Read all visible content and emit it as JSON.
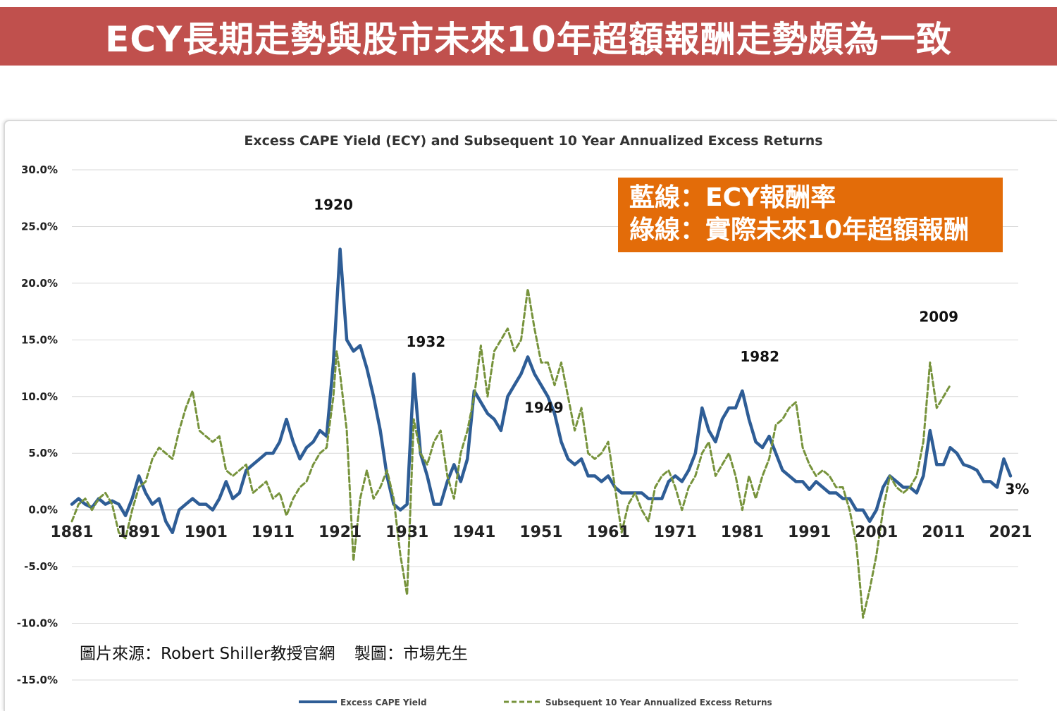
{
  "banner": {
    "text": "ECY長期走勢與股市未來10年超額報酬走勢頗為一致"
  },
  "callout": {
    "line1": "藍線：ECY報酬率",
    "line2": "綠線：實際未來10年超額報酬"
  },
  "source": {
    "photo": "圖片來源：Robert Shiller教授官網",
    "maker": "製圖：市場先生"
  },
  "colors": {
    "banner": "#c0504d",
    "callout": "#e36c09",
    "ecy": "#2e5d96",
    "returns": "#77933c",
    "grid": "#d9d9d9"
  },
  "chart_data": {
    "type": "line",
    "title": "Excess CAPE Yield (ECY) and Subsequent 10 Year Annualized Excess Returns",
    "xlabel": "",
    "ylabel": "",
    "xlim": [
      1881,
      2021
    ],
    "ylim": [
      -15,
      30
    ],
    "x_ticks": [
      "1881",
      "1891",
      "1901",
      "1911",
      "1921",
      "1931",
      "1941",
      "1951",
      "1961",
      "1971",
      "1981",
      "1991",
      "2001",
      "2011",
      "2021"
    ],
    "y_ticks": [
      "30.0%",
      "25.0%",
      "20.0%",
      "15.0%",
      "10.0%",
      "5.0%",
      "0.0%",
      "-5.0%",
      "-10.0%",
      "-15.0%"
    ],
    "grid": true,
    "legend_position": "bottom",
    "annotations": [
      {
        "text": "1920",
        "x": 1920,
        "y": 26.5
      },
      {
        "text": "1932",
        "x": 1933.8,
        "y": 14.4
      },
      {
        "text": "1949",
        "x": 1951.4,
        "y": 8.6
      },
      {
        "text": "1982",
        "x": 1983.6,
        "y": 13.1
      },
      {
        "text": "2009",
        "x": 2010.3,
        "y": 16.6
      },
      {
        "text": "3%",
        "x": 2022,
        "y": 1.4
      }
    ],
    "series": [
      {
        "name": "Excess CAPE Yield",
        "style": "solid",
        "points": [
          [
            1881,
            0.5
          ],
          [
            1882,
            1
          ],
          [
            1883,
            0.5
          ],
          [
            1884,
            0.2
          ],
          [
            1885,
            1
          ],
          [
            1886,
            0.5
          ],
          [
            1887,
            0.8
          ],
          [
            1888,
            0.5
          ],
          [
            1889,
            -0.5
          ],
          [
            1890,
            1
          ],
          [
            1891,
            3
          ],
          [
            1892,
            1.5
          ],
          [
            1893,
            0.5
          ],
          [
            1894,
            1
          ],
          [
            1895,
            -1
          ],
          [
            1896,
            -2
          ],
          [
            1897,
            0
          ],
          [
            1898,
            0.5
          ],
          [
            1899,
            1
          ],
          [
            1900,
            0.5
          ],
          [
            1901,
            0.5
          ],
          [
            1902,
            0
          ],
          [
            1903,
            1
          ],
          [
            1904,
            2.5
          ],
          [
            1905,
            1
          ],
          [
            1906,
            1.5
          ],
          [
            1907,
            3.5
          ],
          [
            1908,
            4
          ],
          [
            1909,
            4.5
          ],
          [
            1910,
            5
          ],
          [
            1911,
            5
          ],
          [
            1912,
            6
          ],
          [
            1913,
            8
          ],
          [
            1914,
            6
          ],
          [
            1915,
            4.5
          ],
          [
            1916,
            5.5
          ],
          [
            1917,
            6
          ],
          [
            1918,
            7
          ],
          [
            1919,
            6.5
          ],
          [
            1920,
            13
          ],
          [
            1920.5,
            18
          ],
          [
            1921,
            23
          ],
          [
            1922,
            15
          ],
          [
            1923,
            14
          ],
          [
            1924,
            14.5
          ],
          [
            1925,
            12.5
          ],
          [
            1926,
            10
          ],
          [
            1927,
            7
          ],
          [
            1928,
            3
          ],
          [
            1929,
            0.5
          ],
          [
            1930,
            0
          ],
          [
            1931,
            0.5
          ],
          [
            1932,
            12
          ],
          [
            1933,
            5
          ],
          [
            1934,
            3
          ],
          [
            1935,
            0.5
          ],
          [
            1936,
            0.5
          ],
          [
            1937,
            2.5
          ],
          [
            1938,
            4
          ],
          [
            1939,
            2.5
          ],
          [
            1940,
            4.5
          ],
          [
            1941,
            10.5
          ],
          [
            1942,
            9.5
          ],
          [
            1943,
            8.5
          ],
          [
            1944,
            8
          ],
          [
            1945,
            7
          ],
          [
            1946,
            10
          ],
          [
            1947,
            11
          ],
          [
            1948,
            12
          ],
          [
            1949,
            13.5
          ],
          [
            1950,
            12
          ],
          [
            1951,
            11
          ],
          [
            1952,
            10
          ],
          [
            1953,
            8.5
          ],
          [
            1954,
            6
          ],
          [
            1955,
            4.5
          ],
          [
            1956,
            4
          ],
          [
            1957,
            4.5
          ],
          [
            1958,
            3
          ],
          [
            1959,
            3
          ],
          [
            1960,
            2.5
          ],
          [
            1961,
            3
          ],
          [
            1962,
            2
          ],
          [
            1963,
            1.5
          ],
          [
            1964,
            1.5
          ],
          [
            1965,
            1.5
          ],
          [
            1966,
            1.5
          ],
          [
            1967,
            1
          ],
          [
            1968,
            1
          ],
          [
            1969,
            1
          ],
          [
            1970,
            2.5
          ],
          [
            1971,
            3
          ],
          [
            1972,
            2.5
          ],
          [
            1973,
            3.5
          ],
          [
            1974,
            5
          ],
          [
            1975,
            9
          ],
          [
            1976,
            7
          ],
          [
            1977,
            6
          ],
          [
            1978,
            8
          ],
          [
            1979,
            9
          ],
          [
            1980,
            9
          ],
          [
            1981,
            10.5
          ],
          [
            1982,
            8
          ],
          [
            1983,
            6
          ],
          [
            1984,
            5.5
          ],
          [
            1985,
            6.5
          ],
          [
            1986,
            5
          ],
          [
            1987,
            3.5
          ],
          [
            1988,
            3
          ],
          [
            1989,
            2.5
          ],
          [
            1990,
            2.5
          ],
          [
            1991,
            1.8
          ],
          [
            1992,
            2.5
          ],
          [
            1993,
            2
          ],
          [
            1994,
            1.5
          ],
          [
            1995,
            1.5
          ],
          [
            1996,
            1
          ],
          [
            1997,
            1
          ],
          [
            1998,
            0
          ],
          [
            1999,
            0
          ],
          [
            2000,
            -1
          ],
          [
            2001,
            0
          ],
          [
            2002,
            2
          ],
          [
            2003,
            3
          ],
          [
            2004,
            2.5
          ],
          [
            2005,
            2
          ],
          [
            2006,
            2
          ],
          [
            2007,
            1.5
          ],
          [
            2008,
            3
          ],
          [
            2009,
            7
          ],
          [
            2010,
            4
          ],
          [
            2011,
            4
          ],
          [
            2012,
            5.5
          ],
          [
            2013,
            5
          ],
          [
            2014,
            4
          ],
          [
            2015,
            3.8
          ],
          [
            2016,
            3.5
          ],
          [
            2017,
            2.5
          ],
          [
            2018,
            2.5
          ],
          [
            2019,
            2
          ],
          [
            2020,
            4.5
          ],
          [
            2021,
            3
          ]
        ]
      },
      {
        "name": "Subsequent 10 Year Annualized Excess Returns",
        "style": "dashed",
        "points": [
          [
            1881,
            -1
          ],
          [
            1882,
            0.5
          ],
          [
            1883,
            1
          ],
          [
            1884,
            0
          ],
          [
            1885,
            1
          ],
          [
            1886,
            1.5
          ],
          [
            1887,
            0.5
          ],
          [
            1888,
            -2
          ],
          [
            1889,
            -2.5
          ],
          [
            1890,
            0
          ],
          [
            1891,
            2
          ],
          [
            1892,
            2.5
          ],
          [
            1893,
            4.5
          ],
          [
            1894,
            5.5
          ],
          [
            1895,
            5
          ],
          [
            1896,
            4.5
          ],
          [
            1897,
            7
          ],
          [
            1898,
            9
          ],
          [
            1899,
            10.5
          ],
          [
            1900,
            7
          ],
          [
            1901,
            6.5
          ],
          [
            1902,
            6
          ],
          [
            1903,
            6.5
          ],
          [
            1904,
            3.5
          ],
          [
            1905,
            3
          ],
          [
            1906,
            3.5
          ],
          [
            1907,
            4
          ],
          [
            1908,
            1.5
          ],
          [
            1909,
            2
          ],
          [
            1910,
            2.5
          ],
          [
            1911,
            1
          ],
          [
            1912,
            1.5
          ],
          [
            1913,
            -0.5
          ],
          [
            1914,
            1
          ],
          [
            1915,
            2
          ],
          [
            1916,
            2.5
          ],
          [
            1917,
            4
          ],
          [
            1918,
            5
          ],
          [
            1919,
            5.5
          ],
          [
            1920,
            10
          ],
          [
            1920.5,
            14
          ],
          [
            1921,
            12
          ],
          [
            1922,
            7
          ],
          [
            1923,
            -4.5
          ],
          [
            1924,
            1
          ],
          [
            1925,
            3.5
          ],
          [
            1926,
            1
          ],
          [
            1927,
            2
          ],
          [
            1928,
            3.5
          ],
          [
            1929,
            1
          ],
          [
            1930,
            -4
          ],
          [
            1931,
            -7.5
          ],
          [
            1932,
            8
          ],
          [
            1933,
            5
          ],
          [
            1934,
            4
          ],
          [
            1935,
            6
          ],
          [
            1936,
            7
          ],
          [
            1937,
            3
          ],
          [
            1938,
            1
          ],
          [
            1939,
            5
          ],
          [
            1940,
            7
          ],
          [
            1941,
            10
          ],
          [
            1942,
            14.5
          ],
          [
            1943,
            10
          ],
          [
            1944,
            14
          ],
          [
            1945,
            15
          ],
          [
            1946,
            16
          ],
          [
            1947,
            14
          ],
          [
            1948,
            15
          ],
          [
            1949,
            19.5
          ],
          [
            1950,
            16
          ],
          [
            1951,
            13
          ],
          [
            1952,
            13
          ],
          [
            1953,
            11
          ],
          [
            1954,
            13
          ],
          [
            1955,
            10
          ],
          [
            1956,
            7
          ],
          [
            1957,
            9
          ],
          [
            1958,
            5
          ],
          [
            1959,
            4.5
          ],
          [
            1960,
            5
          ],
          [
            1961,
            6
          ],
          [
            1962,
            2
          ],
          [
            1963,
            -2
          ],
          [
            1964,
            0.5
          ],
          [
            1965,
            1.5
          ],
          [
            1966,
            0
          ],
          [
            1967,
            -1
          ],
          [
            1968,
            2
          ],
          [
            1969,
            3
          ],
          [
            1970,
            3.5
          ],
          [
            1971,
            2
          ],
          [
            1972,
            0
          ],
          [
            1973,
            2
          ],
          [
            1974,
            3
          ],
          [
            1975,
            5
          ],
          [
            1976,
            6
          ],
          [
            1977,
            3
          ],
          [
            1978,
            4
          ],
          [
            1979,
            5
          ],
          [
            1980,
            3
          ],
          [
            1981,
            0
          ],
          [
            1982,
            3
          ],
          [
            1983,
            1
          ],
          [
            1984,
            3
          ],
          [
            1985,
            4.5
          ],
          [
            1986,
            7.5
          ],
          [
            1987,
            8
          ],
          [
            1988,
            9
          ],
          [
            1989,
            9.5
          ],
          [
            1990,
            5.5
          ],
          [
            1991,
            4
          ],
          [
            1992,
            3
          ],
          [
            1993,
            3.5
          ],
          [
            1994,
            3
          ],
          [
            1995,
            2
          ],
          [
            1996,
            2
          ],
          [
            1997,
            0
          ],
          [
            1998,
            -3
          ],
          [
            1999,
            -9.5
          ],
          [
            2000,
            -7
          ],
          [
            2001,
            -4
          ],
          [
            2002,
            0
          ],
          [
            2003,
            3
          ],
          [
            2004,
            2
          ],
          [
            2005,
            1.5
          ],
          [
            2006,
            2
          ],
          [
            2007,
            3
          ],
          [
            2008,
            6
          ],
          [
            2009,
            13
          ],
          [
            2010,
            9
          ],
          [
            2011,
            10
          ],
          [
            2012,
            11
          ]
        ]
      }
    ]
  }
}
